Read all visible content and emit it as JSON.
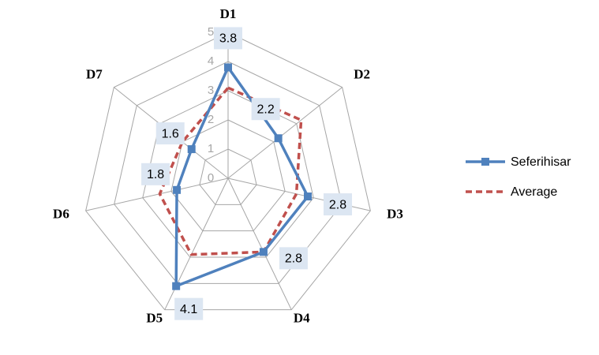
{
  "chart_data": {
    "type": "radar",
    "categories": [
      "D1",
      "D2",
      "D3",
      "D4",
      "D5",
      "D6",
      "D7"
    ],
    "rlim": [
      0,
      5
    ],
    "rticks": [
      0,
      1,
      2,
      3,
      4,
      5
    ],
    "series": [
      {
        "name": "Seferihisar",
        "color": "#4f81bd",
        "values": [
          3.8,
          2.2,
          2.8,
          2.8,
          4.1,
          1.8,
          1.6
        ]
      },
      {
        "name": "Average",
        "color": "#c0504d",
        "values": [
          3.1,
          3.2,
          2.4,
          2.8,
          2.9,
          2.4,
          2.0
        ]
      }
    ]
  }
}
